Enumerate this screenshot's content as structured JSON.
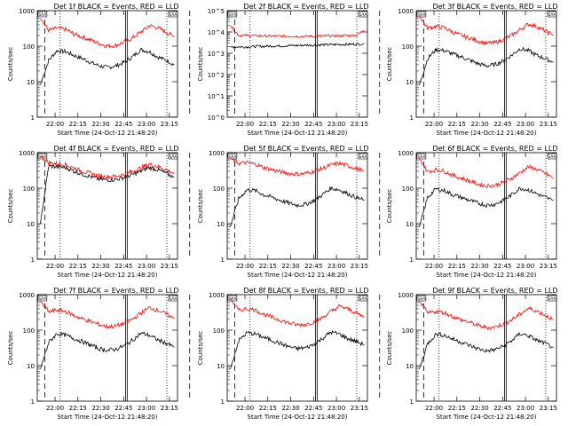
{
  "chart_data": [
    {
      "type": "line",
      "title": "Det 1f BLACK = Events, RED = LLD",
      "xlabel": "Start Time (24-Oct-12 21:48:20)",
      "ylabel": "Counts/sec",
      "xticks": [
        "22:00",
        "22:15",
        "22:30",
        "22:45",
        "23:00",
        "23:15"
      ],
      "yticks": [
        "1",
        "10",
        "100",
        "1000"
      ],
      "ylim": [
        1,
        1000
      ],
      "scale_y": "log",
      "event_markers": [
        {
          "minutes": 0.5,
          "label": "SAA"
        },
        {
          "minutes": 88,
          "label": "SAA"
        }
      ],
      "series": [
        {
          "name": "BLACK = Events",
          "color": "#000000",
          "values": [
            8,
            40,
            75,
            70,
            55,
            45,
            35,
            28,
            25,
            28,
            35,
            50,
            80,
            70,
            50,
            40,
            30
          ]
        },
        {
          "name": "RED = LLD",
          "color": "#ff0000",
          "values": [
            600,
            280,
            320,
            300,
            220,
            180,
            150,
            120,
            100,
            105,
            130,
            170,
            250,
            380,
            330,
            250,
            180
          ]
        }
      ]
    },
    {
      "type": "line",
      "title": "Det 2f BLACK = Events, RED = LLD",
      "xlabel": "Start Time (24-Oct-12 21:48:20)",
      "ylabel": "Counts/sec",
      "xticks": [
        "22:00",
        "22:15",
        "22:30",
        "22:45",
        "23:00",
        "23:15"
      ],
      "yticks": [
        "10^0",
        "10^1",
        "10^2",
        "10^3",
        "10^4",
        "10^5"
      ],
      "ylim": [
        1,
        100000
      ],
      "scale_y": "log",
      "event_markers": [
        {
          "minutes": 0.5,
          "label": "SAA"
        },
        {
          "minutes": 88,
          "label": "SAA"
        }
      ],
      "series": [
        {
          "name": "BLACK = Events",
          "color": "#000000",
          "values": [
            2000,
            2000,
            2000,
            2100,
            2100,
            2200,
            2200,
            2300,
            2300,
            2400,
            2400,
            2500,
            2500,
            2600,
            2600,
            2700,
            2700
          ]
        },
        {
          "name": "RED = LLD",
          "color": "#ff0000",
          "values": [
            20000,
            7000,
            6800,
            6600,
            6500,
            6400,
            6300,
            6300,
            6200,
            6200,
            6300,
            6400,
            6500,
            6600,
            6800,
            7000,
            12000
          ]
        }
      ]
    },
    {
      "type": "line",
      "title": "Det 3f BLACK = Events, RED = LLD",
      "xlabel": "Start Time (24-Oct-12 21:48:20)",
      "ylabel": "Counts/sec",
      "xticks": [
        "22:00",
        "22:15",
        "22:30",
        "22:45",
        "23:00",
        "23:15"
      ],
      "yticks": [
        "1",
        "10",
        "100",
        "1000"
      ],
      "ylim": [
        1,
        1000
      ],
      "scale_y": "log",
      "event_markers": [
        {
          "minutes": 0.5,
          "label": "SAA"
        },
        {
          "minutes": 88,
          "label": "SAA"
        }
      ],
      "series": [
        {
          "name": "BLACK = Events",
          "color": "#000000",
          "values": [
            8,
            45,
            80,
            75,
            60,
            50,
            40,
            32,
            28,
            30,
            38,
            55,
            85,
            75,
            55,
            45,
            35
          ]
        },
        {
          "name": "RED = LLD",
          "color": "#ff0000",
          "values": [
            700,
            320,
            360,
            330,
            250,
            200,
            170,
            140,
            120,
            125,
            150,
            200,
            290,
            420,
            360,
            270,
            200
          ]
        }
      ]
    },
    {
      "type": "line",
      "title": "Det 4f BLACK = Events, RED = LLD",
      "xlabel": "Start Time (24-Oct-12 21:48:20)",
      "ylabel": "Counts/sec",
      "xticks": [
        "22:00",
        "22:15",
        "22:30",
        "22:45",
        "23:00",
        "23:15"
      ],
      "yticks": [
        "1",
        "10",
        "100",
        "1000"
      ],
      "ylim": [
        1,
        1000
      ],
      "scale_y": "log",
      "event_markers": [
        {
          "minutes": 0.5,
          "label": "SAA"
        },
        {
          "minutes": 88,
          "label": "SAA"
        }
      ],
      "series": [
        {
          "name": "BLACK = Events",
          "color": "#000000",
          "values": [
            10,
            420,
            400,
            380,
            300,
            250,
            210,
            180,
            170,
            175,
            200,
            240,
            300,
            380,
            330,
            260,
            200
          ]
        },
        {
          "name": "RED = LLD",
          "color": "#ff0000",
          "values": [
            800,
            520,
            490,
            460,
            370,
            300,
            260,
            220,
            210,
            215,
            245,
            300,
            370,
            470,
            410,
            330,
            260
          ]
        }
      ]
    },
    {
      "type": "line",
      "title": "Det 5f BLACK = Events, RED = LLD",
      "xlabel": "Start Time (24-Oct-12 21:48:20)",
      "ylabel": "Counts/sec",
      "xticks": [
        "22:00",
        "22:15",
        "22:30",
        "22:45",
        "23:00",
        "23:15"
      ],
      "yticks": [
        "1",
        "10",
        "100",
        "1000"
      ],
      "ylim": [
        1,
        1000
      ],
      "scale_y": "log",
      "event_markers": [
        {
          "minutes": 0.5,
          "label": "SAA"
        },
        {
          "minutes": 88,
          "label": "SAA"
        }
      ],
      "series": [
        {
          "name": "BLACK = Events",
          "color": "#000000",
          "values": [
            8,
            50,
            90,
            85,
            65,
            55,
            45,
            38,
            33,
            35,
            45,
            65,
            100,
            90,
            70,
            55,
            45
          ]
        },
        {
          "name": "RED = LLD",
          "color": "#ff0000",
          "values": [
            700,
            500,
            520,
            480,
            380,
            330,
            290,
            260,
            250,
            260,
            300,
            360,
            450,
            500,
            430,
            360,
            300
          ]
        }
      ]
    },
    {
      "type": "line",
      "title": "Det 6f BLACK = Events, RED = LLD",
      "xlabel": "Start Time (24-Oct-12 21:48:20)",
      "ylabel": "Counts/sec",
      "xticks": [
        "22:00",
        "22:15",
        "22:30",
        "22:45",
        "23:00",
        "23:15"
      ],
      "yticks": [
        "1",
        "10",
        "100",
        "1000"
      ],
      "ylim": [
        1,
        1000
      ],
      "scale_y": "log",
      "event_markers": [
        {
          "minutes": 0.5,
          "label": "SAA"
        },
        {
          "minutes": 88,
          "label": "SAA"
        }
      ],
      "series": [
        {
          "name": "BLACK = Events",
          "color": "#000000",
          "values": [
            8,
            55,
            95,
            85,
            65,
            55,
            45,
            38,
            33,
            35,
            45,
            65,
            100,
            90,
            70,
            55,
            45
          ]
        },
        {
          "name": "RED = LLD",
          "color": "#ff0000",
          "values": [
            700,
            290,
            330,
            300,
            230,
            190,
            160,
            130,
            115,
            120,
            145,
            190,
            270,
            400,
            340,
            260,
            190
          ]
        }
      ]
    },
    {
      "type": "line",
      "title": "Det 7f BLACK = Events, RED = LLD",
      "xlabel": "Start Time (24-Oct-12 21:48:20)",
      "ylabel": "Counts/sec",
      "xticks": [
        "22:00",
        "22:15",
        "22:30",
        "22:45",
        "23:00",
        "23:15"
      ],
      "yticks": [
        "1",
        "10",
        "100",
        "1000"
      ],
      "ylim": [
        1,
        1000
      ],
      "scale_y": "log",
      "event_markers": [
        {
          "minutes": 0.5,
          "label": "SAA"
        },
        {
          "minutes": 88,
          "label": "SAA"
        }
      ],
      "series": [
        {
          "name": "BLACK = Events",
          "color": "#000000",
          "values": [
            8,
            45,
            80,
            72,
            58,
            48,
            38,
            30,
            27,
            29,
            36,
            52,
            82,
            72,
            53,
            43,
            33
          ]
        },
        {
          "name": "RED = LLD",
          "color": "#ff0000",
          "values": [
            650,
            330,
            370,
            340,
            260,
            210,
            175,
            145,
            125,
            130,
            155,
            205,
            300,
            430,
            370,
            280,
            210
          ]
        }
      ]
    },
    {
      "type": "line",
      "title": "Det 8f BLACK = Events, RED = LLD",
      "xlabel": "Start Time (24-Oct-12 21:48:20)",
      "ylabel": "Counts/sec",
      "xticks": [
        "22:00",
        "22:15",
        "22:30",
        "22:45",
        "23:00",
        "23:15"
      ],
      "yticks": [
        "1",
        "10",
        "100",
        "1000"
      ],
      "ylim": [
        1,
        1000
      ],
      "scale_y": "log",
      "event_markers": [
        {
          "minutes": 0.5,
          "label": "SAA"
        },
        {
          "minutes": 88,
          "label": "SAA"
        }
      ],
      "series": [
        {
          "name": "BLACK = Events",
          "color": "#000000",
          "values": [
            8,
            50,
            85,
            78,
            62,
            52,
            42,
            34,
            30,
            32,
            40,
            58,
            88,
            78,
            58,
            48,
            38
          ]
        },
        {
          "name": "RED = LLD",
          "color": "#ff0000",
          "values": [
            800,
            360,
            400,
            370,
            280,
            230,
            190,
            160,
            140,
            145,
            170,
            225,
            330,
            470,
            400,
            310,
            230
          ]
        }
      ]
    },
    {
      "type": "line",
      "title": "Det 9f BLACK = Events, RED = LLD",
      "xlabel": "Start Time (24-Oct-12 21:48:20)",
      "ylabel": "Counts/sec",
      "xticks": [
        "22:00",
        "22:15",
        "22:30",
        "22:45",
        "23:00",
        "23:15"
      ],
      "yticks": [
        "1",
        "10",
        "100",
        "1000"
      ],
      "ylim": [
        1,
        1000
      ],
      "scale_y": "log",
      "event_markers": [
        {
          "minutes": 0.5,
          "label": "SAA"
        },
        {
          "minutes": 88,
          "label": "SAA"
        }
      ],
      "series": [
        {
          "name": "BLACK = Events",
          "color": "#000000",
          "values": [
            8,
            42,
            78,
            72,
            56,
            46,
            37,
            30,
            26,
            28,
            35,
            50,
            80,
            70,
            52,
            42,
            32
          ]
        },
        {
          "name": "RED = LLD",
          "color": "#ff0000",
          "values": [
            650,
            300,
            340,
            310,
            240,
            195,
            165,
            135,
            118,
            122,
            148,
            195,
            280,
            410,
            350,
            265,
            195
          ]
        }
      ]
    }
  ]
}
